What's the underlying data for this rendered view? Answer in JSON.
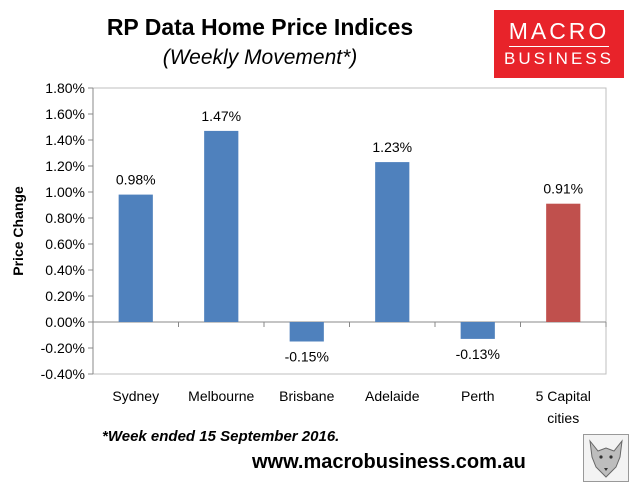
{
  "header": {
    "title": "RP Data Home Price Indices",
    "subtitle": "(Weekly Movement*)"
  },
  "logo": {
    "line1": "MACRO",
    "line2": "BUSINESS"
  },
  "footer": {
    "footnote": "*Week ended 15 September 2016.",
    "url": "www.macrobusiness.com.au"
  },
  "colors": {
    "bar": "#4f81bd",
    "highlight": "#c0504d",
    "accent": "#e8232a"
  },
  "chart_data": {
    "type": "bar",
    "title": "RP Data Home Price Indices",
    "subtitle": "(Weekly Movement*)",
    "ylabel": "Price Change",
    "xlabel": "",
    "categories": [
      "Sydney",
      "Melbourne",
      "Brisbane",
      "Adelaide",
      "Perth",
      "5 Capital cities"
    ],
    "values": [
      0.98,
      1.47,
      -0.15,
      1.23,
      -0.13,
      0.91
    ],
    "data_labels": [
      "0.98%",
      "1.47%",
      "-0.15%",
      "1.23%",
      "-0.13%",
      "0.91%"
    ],
    "highlight_category": "5 Capital cities",
    "ylim": [
      -0.4,
      1.8
    ],
    "yticks": [
      -0.4,
      -0.2,
      0,
      0.2,
      0.4,
      0.6,
      0.8,
      1.0,
      1.2,
      1.4,
      1.6,
      1.8
    ],
    "ytick_labels": [
      "-0.40%",
      "-0.20%",
      "0.00%",
      "0.20%",
      "0.40%",
      "0.60%",
      "0.80%",
      "1.00%",
      "1.20%",
      "1.40%",
      "1.60%",
      "1.80%"
    ],
    "grid": false,
    "legend": "none"
  }
}
